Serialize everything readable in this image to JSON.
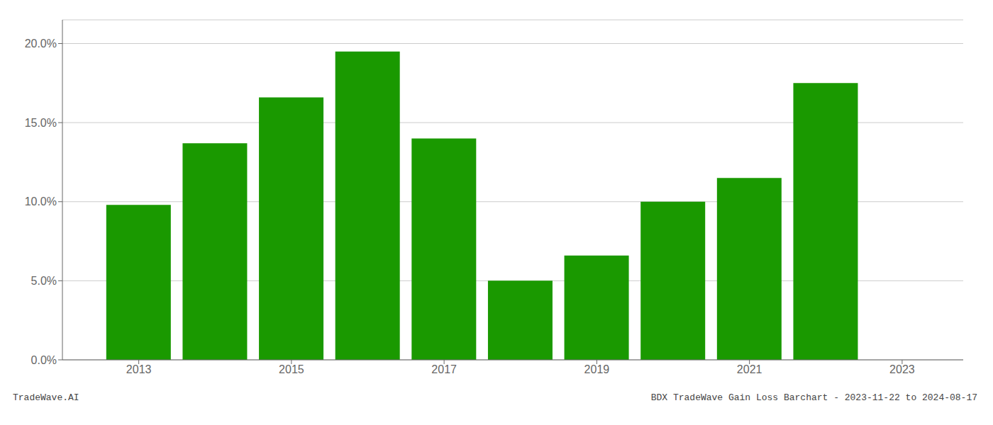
{
  "chart_data": {
    "type": "bar",
    "x": [
      2013,
      2014,
      2015,
      2016,
      2017,
      2018,
      2019,
      2020,
      2021,
      2022
    ],
    "values": [
      0.098,
      0.137,
      0.166,
      0.195,
      0.14,
      0.05,
      0.066,
      0.1,
      0.115,
      0.175
    ],
    "color": "#1a9900",
    "xlim": [
      2012.0,
      2023.8
    ],
    "xticks": [
      2013,
      2015,
      2017,
      2019,
      2021,
      2023
    ],
    "ylim": [
      0,
      0.215
    ],
    "yticks": [
      {
        "value": 0.0,
        "label": "0.0%"
      },
      {
        "value": 0.05,
        "label": "5.0%"
      },
      {
        "value": 0.1,
        "label": "10.0%"
      },
      {
        "value": 0.15,
        "label": "15.0%"
      },
      {
        "value": 0.2,
        "label": "20.0%"
      }
    ],
    "grid": "y",
    "annotations": [
      "TradeWave.AI",
      "BDX TradeWave Gain Loss Barchart - 2023-11-22 to 2024-08-17"
    ]
  }
}
